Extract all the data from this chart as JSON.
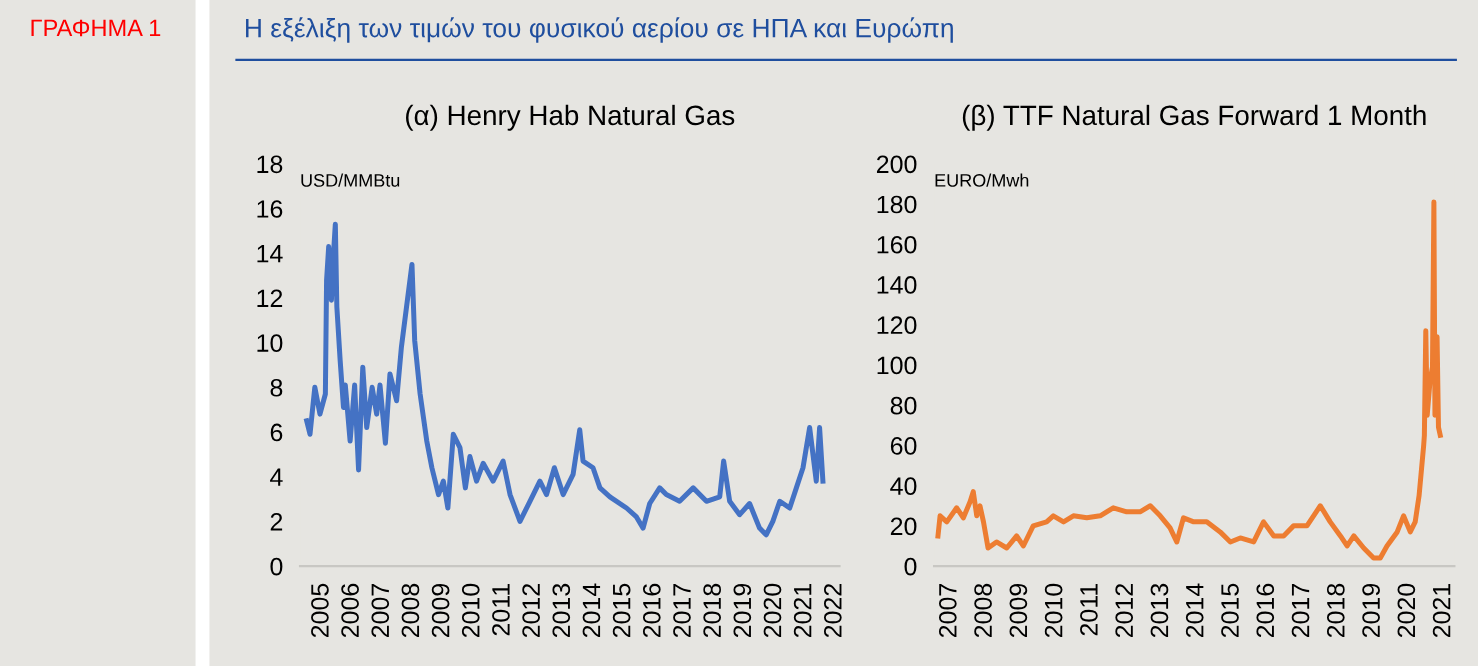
{
  "chart_data": [
    {
      "type": "line",
      "title": "(α) Henry Hab Natural Gas",
      "ylabel": "USD/MMBtu",
      "annotations": [
        "ΓΡΑΦΗΜΑ 1",
        "Η εξέλιξη των τιμών του φυσικού αερίου σε ΗΠΑ και Ευρώπη"
      ],
      "series": [
        {
          "color": "#4472c4",
          "x": [
            2004.99,
            2005.1,
            2005.26,
            2005.43,
            2005.61,
            2005.65,
            2005.72,
            2005.81,
            2005.88,
            2005.94,
            2005.99,
            2006.1,
            2006.21,
            2006.27,
            2006.43,
            2006.58,
            2006.71,
            2006.85,
            2006.98,
            2007.16,
            2007.31,
            2007.42,
            2007.6,
            2007.75,
            2007.97,
            2008.13,
            2008.3,
            2008.48,
            2008.57,
            2008.75,
            2008.97,
            2009.14,
            2009.36,
            2009.52,
            2009.67,
            2009.85,
            2010.07,
            2010.25,
            2010.4,
            2010.62,
            2010.84,
            2011.17,
            2011.5,
            2011.73,
            2012.06,
            2012.39,
            2012.72,
            2012.94,
            2013.2,
            2013.49,
            2013.82,
            2014.04,
            2014.15,
            2014.48,
            2014.71,
            2015.04,
            2015.59,
            2015.92,
            2016.14,
            2016.36,
            2016.69,
            2016.91,
            2017.35,
            2017.8,
            2018.24,
            2018.68,
            2018.81,
            2019.01,
            2019.34,
            2019.67,
            2020.0,
            2020.22,
            2020.44,
            2020.67,
            2021.0,
            2021.22,
            2021.44,
            2021.66,
            2021.77,
            2021.88,
            2021.99,
            2022.1
          ],
          "values": [
            6.5,
            5.9,
            8.0,
            6.8,
            7.7,
            12.8,
            14.3,
            11.9,
            14.0,
            15.3,
            11.6,
            9.2,
            7.1,
            8.1,
            5.6,
            8.1,
            4.3,
            8.9,
            6.2,
            8.0,
            6.8,
            8.1,
            5.5,
            8.6,
            7.4,
            9.8,
            11.6,
            13.5,
            10.1,
            7.7,
            5.6,
            4.4,
            3.2,
            3.8,
            2.6,
            5.9,
            5.3,
            3.5,
            4.9,
            3.8,
            4.6,
            3.8,
            4.7,
            3.2,
            2.0,
            2.9,
            3.8,
            3.2,
            4.4,
            3.2,
            4.1,
            6.1,
            4.7,
            4.4,
            3.5,
            3.1,
            2.6,
            2.2,
            1.7,
            2.8,
            3.5,
            3.2,
            2.9,
            3.5,
            2.9,
            3.1,
            4.7,
            2.9,
            2.3,
            2.8,
            1.7,
            1.4,
            2.0,
            2.9,
            2.6,
            3.5,
            4.4,
            6.2,
            5.0,
            3.8,
            6.2,
            3.8
          ]
        }
      ],
      "xticks": [
        {
          "value": 2005.5,
          "label": "2005"
        },
        {
          "value": 2006.5,
          "label": "2006"
        },
        {
          "value": 2007.5,
          "label": "2007"
        },
        {
          "value": 2008.5,
          "label": "2008"
        },
        {
          "value": 2009.5,
          "label": "2009"
        },
        {
          "value": 2010.5,
          "label": "2010"
        },
        {
          "value": 2011.5,
          "label": "2011"
        },
        {
          "value": 2012.5,
          "label": "2012"
        },
        {
          "value": 2013.5,
          "label": "2013"
        },
        {
          "value": 2014.5,
          "label": "2014"
        },
        {
          "value": 2015.5,
          "label": "2015"
        },
        {
          "value": 2016.5,
          "label": "2016"
        },
        {
          "value": 2017.5,
          "label": "2017"
        },
        {
          "value": 2018.5,
          "label": "2018"
        },
        {
          "value": 2019.5,
          "label": "2019"
        },
        {
          "value": 2020.5,
          "label": "2020"
        },
        {
          "value": 2021.5,
          "label": "2021"
        },
        {
          "value": 2022.5,
          "label": "2022"
        }
      ],
      "xlim": [
        2004.77,
        2022.65
      ],
      "ylim": [
        0,
        18
      ],
      "yticks": [
        0,
        2,
        4,
        6,
        8,
        10,
        12,
        14,
        16,
        18
      ],
      "grid": false,
      "legend": false
    },
    {
      "type": "line",
      "title": "(β) TTF Natural Gas Forward 1 Month",
      "ylabel": "EURO/Mwh",
      "series": [
        {
          "color": "#ed7d31",
          "x": [
            2007.16,
            2007.22,
            2007.41,
            2007.69,
            2007.88,
            2008.07,
            2008.16,
            2008.26,
            2008.35,
            2008.45,
            2008.58,
            2008.82,
            2009.11,
            2009.39,
            2009.58,
            2009.86,
            2010.24,
            2010.43,
            2010.72,
            2011.0,
            2011.38,
            2011.76,
            2012.13,
            2012.51,
            2012.89,
            2013.18,
            2013.46,
            2013.74,
            2013.93,
            2014.12,
            2014.41,
            2014.78,
            2015.16,
            2015.45,
            2015.73,
            2016.11,
            2016.39,
            2016.68,
            2016.96,
            2017.24,
            2017.62,
            2018.0,
            2018.28,
            2018.57,
            2018.76,
            2018.95,
            2019.23,
            2019.51,
            2019.7,
            2019.89,
            2020.18,
            2020.36,
            2020.55,
            2020.69,
            2020.8,
            2020.93,
            2020.95,
            2020.99,
            2021.03,
            2021.11,
            2021.18,
            2021.22,
            2021.25,
            2021.31,
            2021.35,
            2021.4
          ],
          "values": [
            15,
            25,
            22,
            29,
            24,
            32,
            37,
            25,
            30,
            22,
            9,
            12,
            9,
            15,
            10,
            20,
            22,
            25,
            22,
            25,
            24,
            25,
            29,
            27,
            27,
            30,
            25,
            19,
            12,
            24,
            22,
            22,
            17,
            12,
            14,
            12,
            22,
            15,
            15,
            20,
            20,
            30,
            22,
            15,
            10,
            15,
            9,
            4,
            4,
            10,
            17,
            25,
            17,
            22,
            35,
            60,
            65,
            117,
            75,
            92,
            99,
            181,
            75,
            114,
            69,
            65
          ]
        }
      ],
      "xticks": [
        {
          "value": 2007.5,
          "label": "2007"
        },
        {
          "value": 2008.5,
          "label": "2008"
        },
        {
          "value": 2009.5,
          "label": "2009"
        },
        {
          "value": 2010.5,
          "label": "2010"
        },
        {
          "value": 2011.5,
          "label": "2011"
        },
        {
          "value": 2012.5,
          "label": "2012"
        },
        {
          "value": 2013.5,
          "label": "2013"
        },
        {
          "value": 2014.5,
          "label": "2014"
        },
        {
          "value": 2015.5,
          "label": "2015"
        },
        {
          "value": 2016.5,
          "label": "2016"
        },
        {
          "value": 2017.5,
          "label": "2017"
        },
        {
          "value": 2018.5,
          "label": "2018"
        },
        {
          "value": 2019.5,
          "label": "2019"
        },
        {
          "value": 2020.5,
          "label": "2020"
        },
        {
          "value": 2021.5,
          "label": "2021"
        }
      ],
      "xlim": [
        2007.05,
        2021.8
      ],
      "ylim": [
        0,
        200
      ],
      "yticks": [
        0,
        20,
        40,
        60,
        80,
        100,
        120,
        140,
        160,
        180,
        200
      ],
      "grid": false,
      "legend": false
    }
  ]
}
